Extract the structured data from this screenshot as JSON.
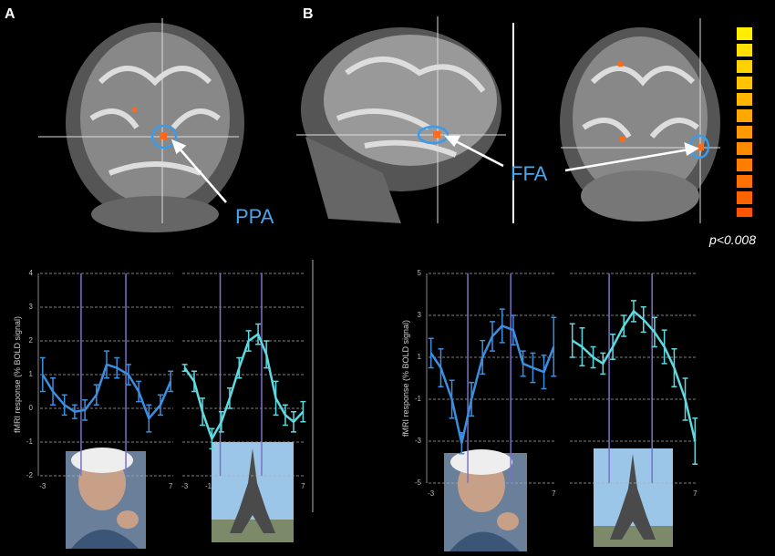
{
  "figure": {
    "panels": [
      "A",
      "B"
    ],
    "annotations": [
      "PPA",
      "FFA"
    ],
    "threshold": "p<0.008"
  },
  "chart_data": [
    {
      "type": "line",
      "ylabel": "fMRI response (% BOLD signal)",
      "xlim": [
        -3.2,
        7.2
      ],
      "ylim": [
        -2,
        4
      ],
      "yticks": [
        -2,
        -1,
        0,
        1,
        2,
        3,
        4
      ],
      "ytick_labels": true,
      "xticks": [
        -3,
        7
      ],
      "vlines": [
        0,
        3.5
      ],
      "grid": true,
      "x": [
        -3,
        -2.2,
        -1.3,
        -0.5,
        0.3,
        1.2,
        2,
        2.8,
        3.7,
        4.5,
        5.3,
        6.2,
        7
      ],
      "series": [
        {
          "color": "#3a8fe0",
          "values": [
            1.0,
            0.5,
            0.1,
            -0.1,
            -0.05,
            0.4,
            1.3,
            1.2,
            1.0,
            0.5,
            -0.3,
            0.1,
            0.8
          ],
          "errors": [
            0.5,
            0.4,
            0.3,
            0.2,
            0.3,
            0.3,
            0.4,
            0.3,
            0.3,
            0.3,
            0.4,
            0.3,
            0.3
          ]
        }
      ]
    },
    {
      "type": "line",
      "xlim": [
        -3.2,
        7.2
      ],
      "ylim": [
        -2,
        4
      ],
      "yticks": [
        -2,
        -1,
        0,
        1,
        2,
        3,
        4
      ],
      "ytick_labels": false,
      "xticks": [
        -3,
        -1,
        7
      ],
      "vlines": [
        0,
        3.5
      ],
      "grid": true,
      "x": [
        -3,
        -2.2,
        -1.5,
        -0.7,
        0.1,
        0.8,
        1.6,
        2.4,
        3.2,
        3.9,
        4.7,
        5.5,
        6.2,
        7
      ],
      "series": [
        {
          "color": "#5fd8e0",
          "values": [
            1.2,
            0.8,
            -0.1,
            -0.9,
            -0.4,
            0.3,
            1.2,
            2.0,
            2.2,
            1.6,
            0.3,
            -0.2,
            -0.4,
            -0.1
          ],
          "errors": [
            0.1,
            0.3,
            0.4,
            0.3,
            0.3,
            0.3,
            0.3,
            0.3,
            0.3,
            0.4,
            0.5,
            0.3,
            0.3,
            0.3
          ]
        }
      ]
    },
    {
      "type": "line",
      "ylabel": "fMRI response (% BOLD signal)",
      "xlim": [
        -3.2,
        7.2
      ],
      "ylim": [
        -5,
        5
      ],
      "yticks": [
        -5,
        -3,
        -1,
        1,
        3,
        5
      ],
      "ytick_labels": true,
      "xticks": [
        -3,
        7
      ],
      "vlines": [
        0,
        3.5
      ],
      "grid": true,
      "x": [
        -3,
        -2.2,
        -1.3,
        -0.5,
        0.3,
        1.2,
        2,
        2.8,
        3.7,
        4.5,
        5.3,
        6.2,
        7
      ],
      "series": [
        {
          "color": "#3a8fe0",
          "values": [
            1.2,
            0.5,
            -1,
            -3.1,
            -1,
            1,
            2,
            2.5,
            2.3,
            0.7,
            0.5,
            0.3,
            1.5
          ],
          "errors": [
            0.7,
            0.9,
            0.9,
            0.5,
            0.8,
            0.8,
            0.7,
            0.8,
            0.7,
            0.6,
            0.7,
            0.8,
            1.4
          ]
        }
      ]
    },
    {
      "type": "line",
      "xlim": [
        -3.2,
        7.2
      ],
      "ylim": [
        -5,
        5
      ],
      "yticks": [
        -5,
        -3,
        -1,
        1,
        3,
        5
      ],
      "ytick_labels": false,
      "xticks": [
        7
      ],
      "vlines": [
        0,
        3.5
      ],
      "grid": true,
      "x": [
        -3,
        -2.2,
        -1.3,
        -0.5,
        0.3,
        1.2,
        2,
        2.8,
        3.7,
        4.5,
        5.3,
        6.2,
        7
      ],
      "series": [
        {
          "color": "#5fd8e0",
          "values": [
            1.8,
            1.5,
            1.0,
            0.7,
            1.5,
            2.5,
            3.2,
            2.8,
            2.2,
            1.5,
            0.5,
            -1,
            -3
          ],
          "errors": [
            0.8,
            0.9,
            0.5,
            0.5,
            0.6,
            0.5,
            0.5,
            0.6,
            0.7,
            0.8,
            0.9,
            1.0,
            1.1
          ]
        }
      ]
    }
  ]
}
